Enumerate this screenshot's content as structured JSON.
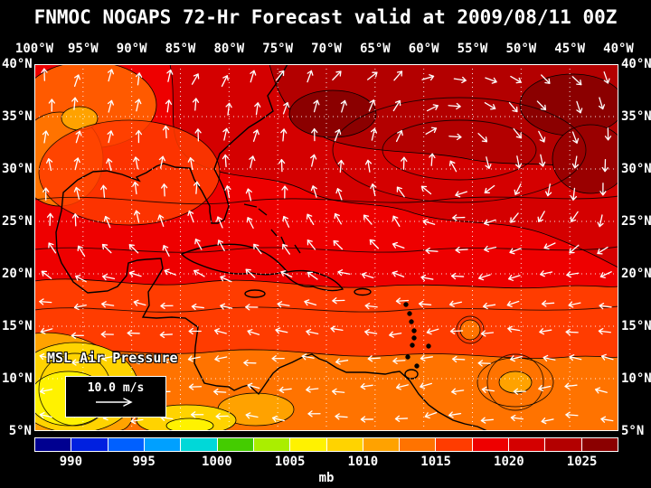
{
  "title": "FNMOC NOGAPS 72-Hr Forecast valid at 2009/08/11 00Z",
  "map": {
    "field_label": "MSL Air Pressure",
    "wind_scale_label": "10.0 m/s",
    "lon_labels": [
      "100°W",
      "95°W",
      "90°W",
      "85°W",
      "80°W",
      "75°W",
      "70°W",
      "65°W",
      "60°W",
      "55°W",
      "50°W",
      "45°W",
      "40°W"
    ],
    "lat_labels": [
      "40°N",
      "35°N",
      "30°N",
      "25°N",
      "20°N",
      "15°N",
      "10°N",
      "5°N"
    ]
  },
  "colorbar": {
    "unit": "mb",
    "tick_labels": [
      "990",
      "995",
      "1000",
      "1005",
      "1010",
      "1015",
      "1020",
      "1025"
    ],
    "range_mb": [
      987.5,
      1027.5
    ],
    "segment_colors": [
      "#000090",
      "#0020e0",
      "#0060ff",
      "#00a0ff",
      "#00d8d8",
      "#44cc00",
      "#aaee00",
      "#fff200",
      "#ffd300",
      "#ffa200",
      "#ff7300",
      "#ff3c00",
      "#ee0000",
      "#d40000",
      "#b30000",
      "#8b0000"
    ]
  },
  "chart_data": {
    "type": "heatmap",
    "title": "FNMOC NOGAPS 72-Hr Forecast valid at 2009/08/11 00Z",
    "variable": "MSL Air Pressure",
    "unit": "mb",
    "x_ticks": [
      "100°W",
      "95°W",
      "90°W",
      "85°W",
      "80°W",
      "75°W",
      "70°W",
      "65°W",
      "60°W",
      "55°W",
      "50°W",
      "45°W",
      "40°W"
    ],
    "y_ticks": [
      "40°N",
      "35°N",
      "30°N",
      "25°N",
      "20°N",
      "15°N",
      "10°N",
      "5°N"
    ],
    "colorbar_ticks_mb": [
      990,
      995,
      1000,
      1005,
      1010,
      1015,
      1020,
      1025
    ],
    "colorbar_range_mb": [
      987.5,
      1027.5
    ],
    "wind_vector_scale_mps": 10.0,
    "legend_position": "bottom",
    "notes": "Filled MSL pressure contours with overlaid wind vectors; high pressure (dark red ~1020-1025 mb) over the western North Atlantic, lower pressure (yellow/orange ~1005-1012 mb) over Central America and the adjacent eastern Pacific."
  }
}
